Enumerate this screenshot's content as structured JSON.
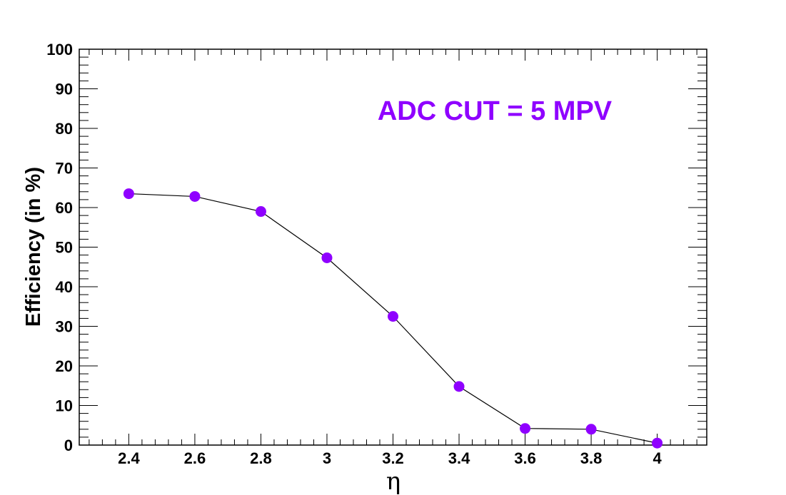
{
  "chart_data": {
    "type": "line",
    "xlabel": "η",
    "ylabel": "Efficiency (in %)",
    "xlim": [
      2.25,
      4.15
    ],
    "ylim": [
      0,
      100
    ],
    "x_ticks": [
      2.4,
      2.6,
      2.8,
      3,
      3.2,
      3.4,
      3.6,
      3.8,
      4
    ],
    "x_tick_labels": [
      "2.4",
      "2.6",
      "2.8",
      "3",
      "3.2",
      "3.4",
      "3.6",
      "3.8",
      "4"
    ],
    "y_ticks": [
      0,
      10,
      20,
      30,
      40,
      50,
      60,
      70,
      80,
      90,
      100
    ],
    "y_tick_labels": [
      "0",
      "10",
      "20",
      "30",
      "40",
      "50",
      "60",
      "70",
      "80",
      "90",
      "100"
    ],
    "annotation": "ADC CUT = 5 MPV",
    "grid": false,
    "series": [
      {
        "x": [
          2.4,
          2.6,
          2.8,
          3.0,
          3.2,
          3.4,
          3.6,
          3.8,
          4.0
        ],
        "values": [
          63.5,
          62.8,
          59.0,
          47.3,
          32.5,
          14.8,
          4.2,
          4.0,
          0.5
        ],
        "marker_color": "#8f00ff",
        "line_color": "#000000"
      }
    ]
  }
}
